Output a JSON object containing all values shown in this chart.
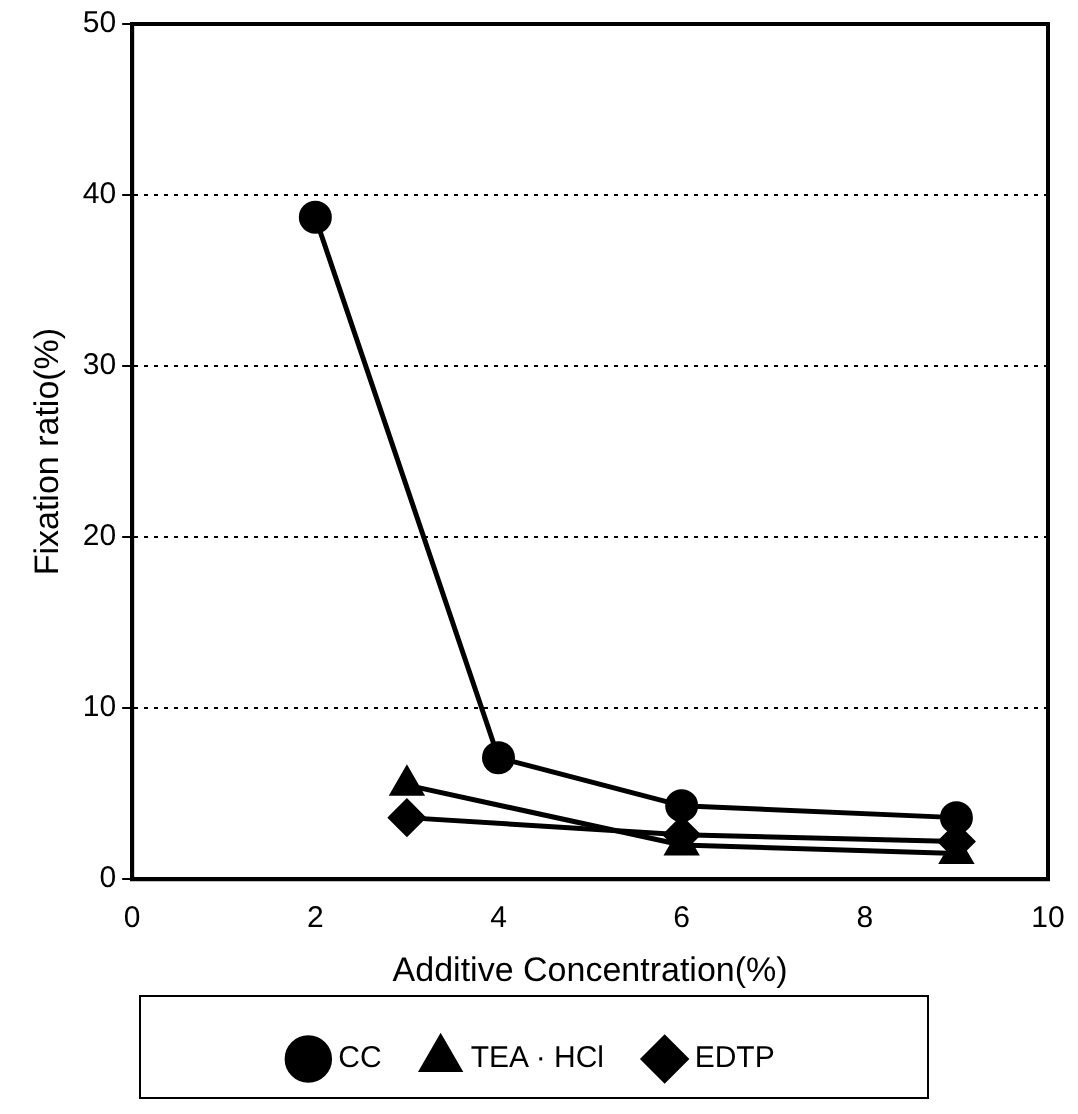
{
  "chart_data": {
    "type": "line",
    "xlabel": "Additive Concentration(%)",
    "ylabel": "Fixation ratio(%)",
    "xlim": [
      0,
      10
    ],
    "xticks": [
      0,
      2,
      4,
      6,
      8,
      10
    ],
    "ylim": [
      0,
      50
    ],
    "yticks": [
      0,
      10,
      20,
      30,
      40,
      50
    ],
    "grid": "y",
    "legend": "bottom",
    "line_style": "solid",
    "series": [
      {
        "name": "CC",
        "color": "#000000",
        "marker": "circle",
        "x": [
          2,
          4,
          6,
          9
        ],
        "values": [
          38.7,
          7.1,
          4.3,
          3.6
        ]
      },
      {
        "name": "TEA · HCl",
        "color": "#000000",
        "marker": "triangle",
        "x": [
          3,
          6,
          9
        ],
        "values": [
          5.5,
          2.0,
          1.5
        ]
      },
      {
        "name": "EDTP",
        "color": "#000000",
        "marker": "diamond",
        "x": [
          3,
          6,
          9
        ],
        "values": [
          3.6,
          2.6,
          2.2
        ]
      }
    ]
  }
}
